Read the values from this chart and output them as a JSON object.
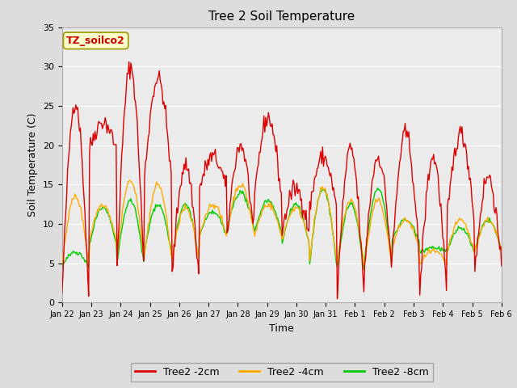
{
  "title": "Tree 2 Soil Temperature",
  "ylabel": "Soil Temperature (C)",
  "xlabel": "Time",
  "annotation_text": "TZ_soilco2",
  "annotation_color": "#cc0000",
  "annotation_bg": "#ffffcc",
  "annotation_border": "#999900",
  "ylim": [
    0,
    35
  ],
  "yticks": [
    0,
    5,
    10,
    15,
    20,
    25,
    30,
    35
  ],
  "color_2cm": "#dd0000",
  "color_4cm": "#ffaa00",
  "color_8cm": "#00cc00",
  "legend_labels": [
    "Tree2 -2cm",
    "Tree2 -4cm",
    "Tree2 -8cm"
  ],
  "bg_color": "#dddddd",
  "plot_bg_color": "#ebebeb",
  "x_tick_labels": [
    "Jan 22",
    "Jan 23",
    "Jan 24",
    "Jan 25",
    "Jan 26",
    "Jan 27",
    "Jan 28",
    "Jan 29",
    "Jan 30",
    "Jan 31",
    "Feb 1",
    "Feb 2",
    "Feb 3",
    "Feb 4",
    "Feb 5",
    "Feb 6"
  ],
  "grid_color": "#ffffff",
  "linewidth": 1.0,
  "n_points": 480,
  "days": 15,
  "peaks_2cm": [
    25.5,
    1.0,
    23.0,
    19.5,
    30.0,
    5.0,
    28.5,
    16.0,
    17.5,
    3.5,
    18.5,
    14.5,
    20.0,
    8.5,
    23.5,
    13.5,
    14.5,
    9.0,
    18.5,
    12.0,
    19.5,
    1.0,
    18.5,
    5.0,
    21.5,
    6.0,
    18.5,
    1.5,
    21.5,
    11.0,
    16.0,
    4.0
  ],
  "peaks_4cm": [
    13.5,
    5.0,
    12.5,
    8.0,
    15.5,
    6.0,
    15.0,
    6.0,
    12.0,
    5.5,
    12.5,
    8.5,
    15.0,
    9.0,
    12.5,
    8.5,
    12.0,
    8.0,
    14.5,
    5.5,
    13.0,
    5.0,
    13.0,
    5.0,
    10.5,
    7.0,
    6.5,
    5.0,
    10.5,
    6.5,
    10.5,
    6.5
  ],
  "peaks_8cm": [
    6.5,
    4.5,
    12.0,
    7.5,
    13.0,
    5.0,
    12.5,
    6.5,
    12.5,
    5.5,
    11.5,
    8.5,
    14.0,
    9.5,
    13.0,
    9.0,
    12.5,
    7.5,
    14.5,
    5.0,
    12.5,
    4.5,
    14.5,
    5.5,
    10.5,
    8.0,
    7.0,
    6.5,
    9.5,
    6.5,
    10.5,
    6.5
  ]
}
